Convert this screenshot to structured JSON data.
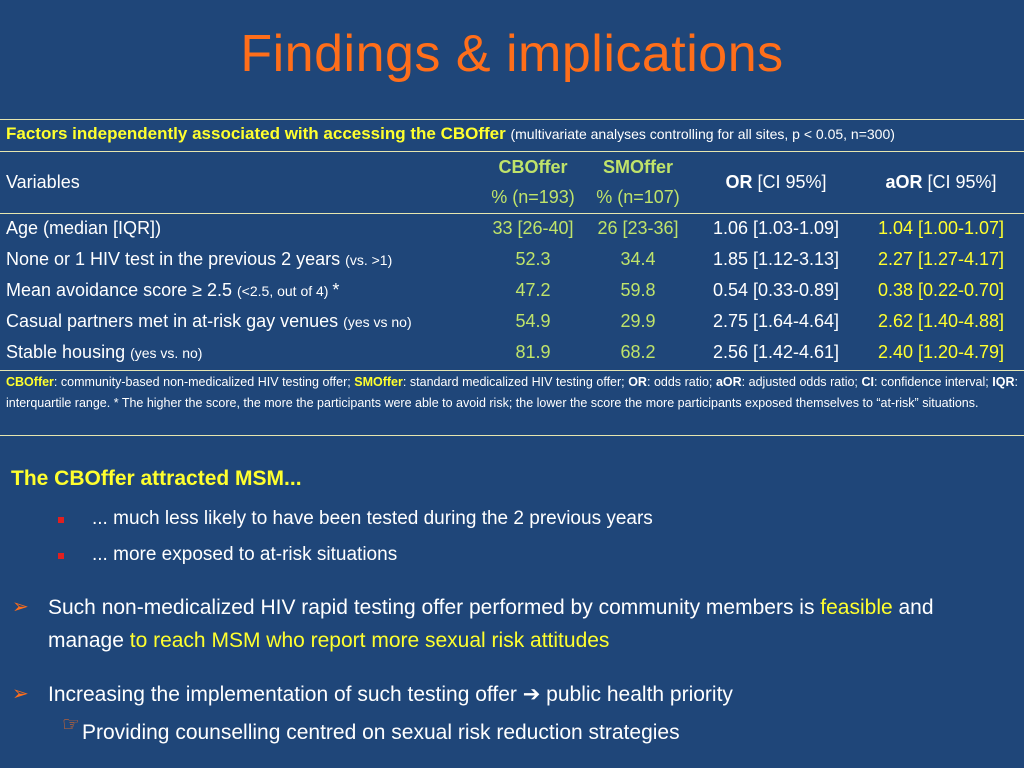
{
  "title": "Findings & implications",
  "table": {
    "caption_bold": "Factors independently associated with accessing the CBOffer",
    "caption_note": "(multivariate analyses controlling for all sites, p < 0.05, n=300)",
    "header": {
      "variables": "Variables",
      "cboffer": "CBOffer",
      "cboffer_n": "% (n=193)",
      "smoffer": "SMOffer",
      "smoffer_n": "% (n=107)",
      "or_bold": "OR",
      "or_rest": " [CI 95%]",
      "aor_bold": "aOR",
      "aor_rest": " [CI 95%]"
    },
    "rows": [
      {
        "variable": "Age (median [IQR])",
        "qualifier": "",
        "cboffer": "33 [26-40]",
        "smoffer": "26 [23-36]",
        "or": "1.06 [1.03-1.09]",
        "aor": "1.04 [1.00-1.07]"
      },
      {
        "variable": "None or 1 HIV test in the previous 2 years ",
        "qualifier": "(vs. >1)",
        "cboffer": "52.3",
        "smoffer": "34.4",
        "or": "1.85 [1.12-3.13]",
        "aor": "2.27 [1.27-4.17]"
      },
      {
        "variable": "Mean avoidance score ≥ 2.5 ",
        "qualifier": "(<2.5, out of 4) ",
        "suffix": "*",
        "cboffer": "47.2",
        "smoffer": "59.8",
        "or": "0.54 [0.33-0.89]",
        "aor": "0.38 [0.22-0.70]"
      },
      {
        "variable": "Casual partners met in at-risk gay venues ",
        "qualifier": "(yes vs no)",
        "cboffer": "54.9",
        "smoffer": "29.9",
        "or": "2.75 [1.64-4.64]",
        "aor": "2.62 [1.40-4.88]"
      },
      {
        "variable": "Stable housing ",
        "qualifier": "(yes vs. no)",
        "cboffer": "81.9",
        "smoffer": "68.2",
        "or": "2.56 [1.42-4.61]",
        "aor": "2.40 [1.20-4.79]"
      }
    ],
    "footnote": {
      "t1": "CBOffer",
      "t2": ": community-based non-medicalized HIV testing offer; ",
      "t3": "SMOffer",
      "t4": ": standard medicalized HIV testing offer; ",
      "t5": "OR",
      "t6": ": odds ratio; ",
      "t7": "aOR",
      "t8": ": adjusted odds ratio; ",
      "t9": "CI",
      "t10": ": confidence interval; ",
      "t11": "IQR",
      "t12": ": interquartile range. * The higher the score, the more the participants were able to avoid risk; the lower the score the more participants exposed themselves to “at-risk” situations."
    }
  },
  "section": {
    "title": "The CBOffer attracted MSM...",
    "subs": [
      "... much less likely to have been tested during the 2 previous years",
      "... more exposed to at-risk situations"
    ]
  },
  "bullets": {
    "b1_a": "Such non-medicalized HIV rapid testing offer performed by community members is ",
    "b1_b": "feasible",
    "b1_c": " and manage ",
    "b1_d": "to reach MSM who report more sexual risk attitudes",
    "b2_a": "Increasing the implementation of such testing offer ",
    "b2_arrow": "➔",
    "b2_b": " public health priority",
    "hand_text": "Providing counselling centred on sexual risk reduction strategies"
  },
  "icons": {
    "arrow_bullet": "arrow-bullet-icon",
    "square_bullet": "square-bullet-icon",
    "hand_pointer": "pointing-hand-icon"
  }
}
